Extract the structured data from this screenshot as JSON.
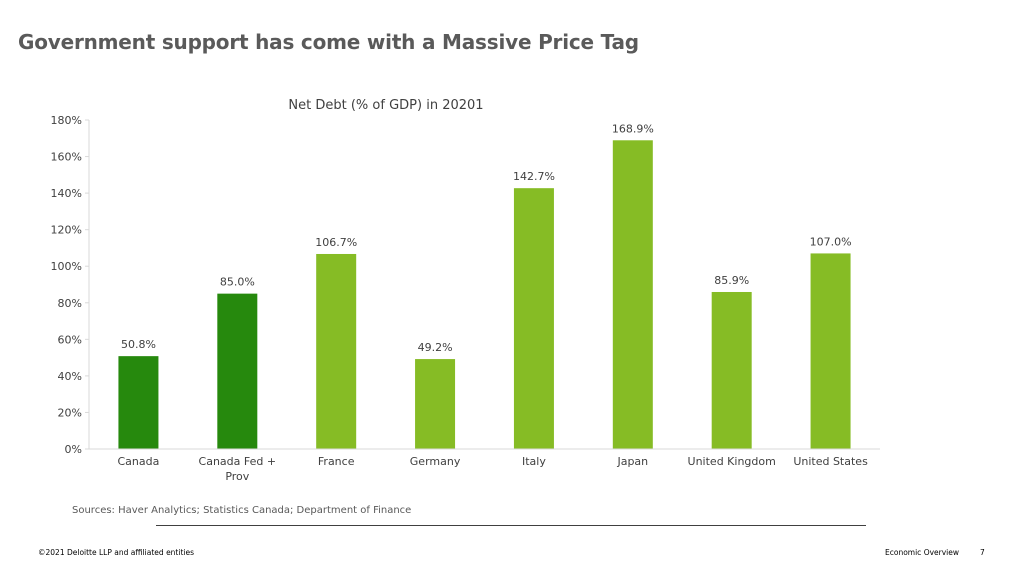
{
  "slide": {
    "title": "Government support has come with a Massive Price Tag",
    "sources": "Sources: Haver Analytics; Statistics Canada; Department of Finance",
    "footer_left": "©2021 Deloitte LLP and affiliated entities",
    "footer_right": "Economic Overview",
    "page_number": "7"
  },
  "colors": {
    "dark_green": "#26890d",
    "light_green": "#86bc25",
    "axis": "#d9d9d9",
    "text": "#404040"
  },
  "chart_data": {
    "type": "bar",
    "title": "Net Debt (% of GDP) in 20201",
    "xlabel": "",
    "ylabel": "",
    "ylim": [
      0,
      180
    ],
    "yticks": [
      "0%",
      "20%",
      "40%",
      "60%",
      "80%",
      "100%",
      "120%",
      "140%",
      "160%",
      "180%"
    ],
    "categories": [
      "Canada",
      "Canada Fed + Prov",
      "France",
      "Germany",
      "Italy",
      "Japan",
      "United Kingdom",
      "United States"
    ],
    "category_lines": [
      [
        "Canada"
      ],
      [
        "Canada Fed +",
        "Prov"
      ],
      [
        "France"
      ],
      [
        "Germany"
      ],
      [
        "Italy"
      ],
      [
        "Japan"
      ],
      [
        "United Kingdom"
      ],
      [
        "United States"
      ]
    ],
    "values": [
      50.8,
      85.0,
      106.7,
      49.2,
      142.7,
      168.9,
      85.9,
      107.0
    ],
    "labels": [
      "50.8%",
      "85.0%",
      "106.7%",
      "49.2%",
      "142.7%",
      "168.9%",
      "85.9%",
      "107.0%"
    ],
    "bar_colors": [
      "dark_green",
      "dark_green",
      "light_green",
      "light_green",
      "light_green",
      "light_green",
      "light_green",
      "light_green"
    ],
    "grid": false,
    "legend": "none"
  }
}
